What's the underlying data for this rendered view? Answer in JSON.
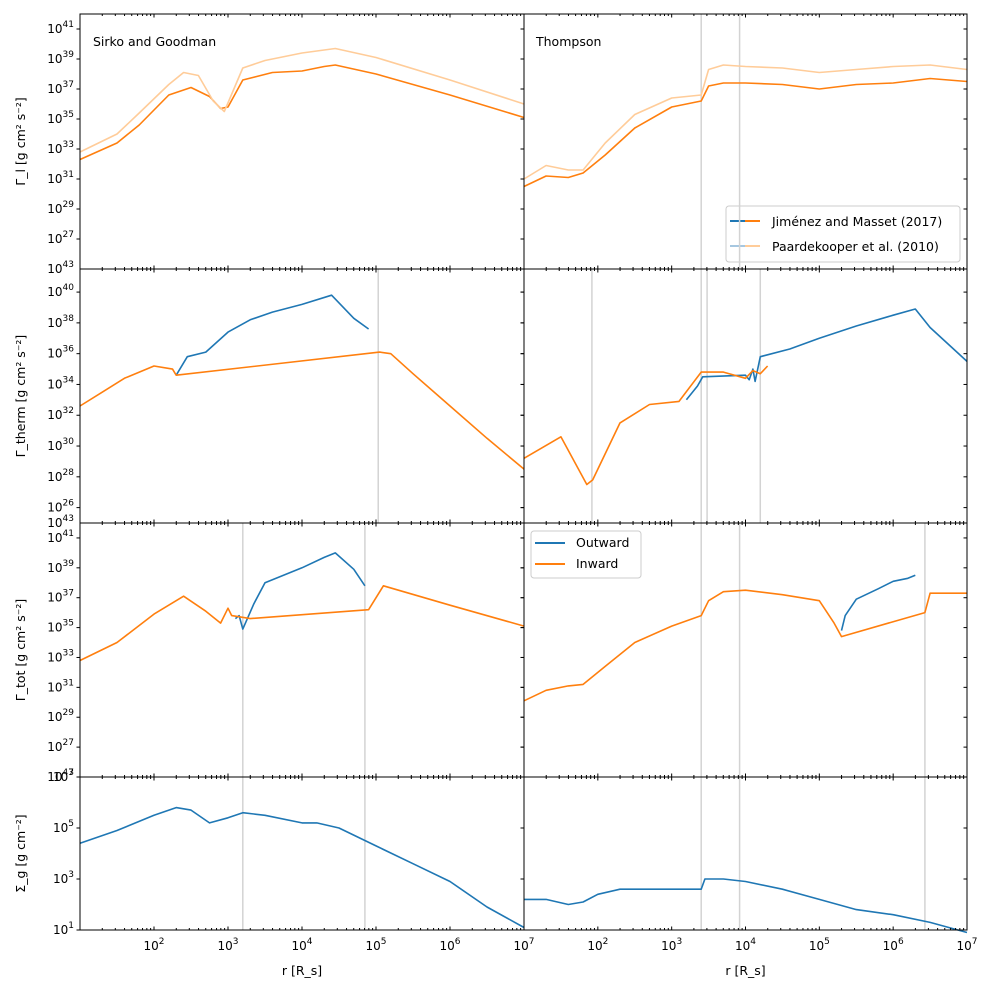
{
  "colors": {
    "outward": "#1f77b4",
    "inward": "#ff7f0e",
    "outward_light": "#a6c7e0",
    "inward_light": "#ffcc99",
    "vline": "#d3d3d3"
  },
  "columns": [
    {
      "title": "Sirko and Goodman"
    },
    {
      "title": "Thompson"
    }
  ],
  "rows": [
    {
      "ylabel": "Γ_l [g cm² s⁻²]",
      "ymin_exp": 25,
      "ymax_exp": 42,
      "ticks": [
        "27",
        "29",
        "31",
        "33",
        "35",
        "37",
        "39",
        "41"
      ]
    },
    {
      "ylabel": "Γ_therm [g cm² s⁻²]",
      "ymin_exp": 25,
      "ymax_exp": 41.5,
      "ticks": [
        "26",
        "28",
        "30",
        "32",
        "34",
        "36",
        "38",
        "40"
      ]
    },
    {
      "ylabel": "Γ_tot [g cm² s⁻²]",
      "ymin_exp": 25,
      "ymax_exp": 42,
      "ticks": [
        "27",
        "29",
        "31",
        "33",
        "35",
        "37",
        "39",
        "41"
      ]
    },
    {
      "ylabel": "Σ_g [g cm⁻²]",
      "ymin_exp": 1,
      "ymax_exp": 7,
      "ticks": [
        "1",
        "3",
        "5",
        "7"
      ]
    }
  ],
  "x_axis": {
    "label": "r [R_s]",
    "xmin_exp": 1,
    "xmax_exp": 7,
    "ticks": [
      "2",
      "3",
      "4",
      "5",
      "6",
      "7"
    ]
  },
  "labels": {
    "tick_base": "10",
    "top_cut_exp": "43",
    "sigma_top_exp": "7",
    "col_title_sg": "Sirko and Goodman",
    "col_title_th": "Thompson",
    "legend1": [
      "Jiménez and Masset (2017)",
      "Paardekooper et al. (2010)"
    ],
    "legend2": [
      "Outward",
      "Inward"
    ]
  },
  "chart_data": [
    {
      "type": "line",
      "title": "Sirko and Goodman",
      "ylabel": "Γ_l [g cm² s⁻²]",
      "xlabel": "",
      "log_x": true,
      "log_y": true,
      "xlim": [
        10,
        10000000
      ],
      "ylim": [
        1e+25,
        1e+42
      ],
      "series": [
        {
          "name": "Jiménez and Masset (2017)",
          "x_log10": [
            1.0,
            1.5,
            1.8,
            2.2,
            2.5,
            2.75,
            2.9,
            3.0,
            3.2,
            3.6,
            4.0,
            4.3,
            4.45,
            5.0,
            6.0,
            7.0
          ],
          "y_log10": [
            32.3,
            33.4,
            34.6,
            36.6,
            37.1,
            36.5,
            35.7,
            35.8,
            37.6,
            38.1,
            38.2,
            38.5,
            38.6,
            38.0,
            36.6,
            35.1
          ]
        },
        {
          "name": "Paardekooper et al. (2010)",
          "x_log10": [
            1.0,
            1.5,
            1.8,
            2.2,
            2.4,
            2.6,
            2.8,
            2.95,
            3.2,
            3.5,
            4.0,
            4.45,
            5.0,
            6.0,
            7.0
          ],
          "y_log10": [
            32.8,
            34.0,
            35.4,
            37.3,
            38.1,
            37.9,
            36.2,
            35.5,
            38.4,
            38.9,
            39.4,
            39.7,
            39.1,
            37.6,
            36.0
          ]
        }
      ]
    },
    {
      "type": "line",
      "title": "Thompson",
      "ylabel": "",
      "xlabel": "",
      "log_x": true,
      "log_y": true,
      "xlim": [
        10,
        10000000
      ],
      "ylim": [
        1e+25,
        1e+42
      ],
      "series": [
        {
          "name": "Jiménez and Masset (2017)",
          "x_log10": [
            1.0,
            1.3,
            1.6,
            1.8,
            2.1,
            2.5,
            3.0,
            3.4,
            3.5,
            3.7,
            4.0,
            4.5,
            5.0,
            5.5,
            6.0,
            6.5,
            7.0
          ],
          "y_log10": [
            30.5,
            31.2,
            31.1,
            31.4,
            32.6,
            34.4,
            35.8,
            36.2,
            37.2,
            37.4,
            37.4,
            37.3,
            37.0,
            37.3,
            37.4,
            37.7,
            37.5
          ]
        },
        {
          "name": "Paardekooper et al. (2010)",
          "x_log10": [
            1.0,
            1.3,
            1.6,
            1.8,
            2.1,
            2.5,
            3.0,
            3.4,
            3.5,
            3.7,
            4.0,
            4.5,
            5.0,
            5.5,
            6.0,
            6.5,
            7.0
          ],
          "y_log10": [
            31.0,
            31.9,
            31.6,
            31.6,
            33.4,
            35.3,
            36.4,
            36.6,
            38.3,
            38.6,
            38.5,
            38.4,
            38.1,
            38.3,
            38.5,
            38.6,
            38.3
          ]
        }
      ]
    },
    {
      "type": "line",
      "title": "",
      "ylabel": "Γ_therm [g cm² s⁻²]",
      "xlabel": "",
      "log_x": true,
      "log_y": true,
      "xlim": [
        10,
        10000000
      ],
      "ylim": [
        1e+25,
        3.2e+41
      ],
      "series": [
        {
          "name": "Outward",
          "x_log10": [
            2.3,
            2.45,
            2.7,
            3.0,
            3.3,
            3.6,
            4.0,
            4.4,
            4.7,
            4.9
          ],
          "y_log10": [
            34.6,
            35.8,
            36.1,
            37.4,
            38.2,
            38.7,
            39.2,
            39.8,
            38.3,
            37.6
          ]
        },
        {
          "name": "Inward",
          "x_log10": [
            1.0,
            1.3,
            1.6,
            2.0,
            2.25,
            2.3,
            5.05,
            5.2,
            5.5,
            6.0,
            6.5,
            7.0
          ],
          "y_log10": [
            32.6,
            33.5,
            34.4,
            35.2,
            35.0,
            34.6,
            36.1,
            36.0,
            34.7,
            32.6,
            30.5,
            28.5
          ]
        }
      ]
    },
    {
      "type": "line",
      "title": "",
      "ylabel": "",
      "xlabel": "",
      "log_x": true,
      "log_y": true,
      "xlim": [
        10,
        10000000
      ],
      "ylim": [
        1e+25,
        3.2e+41
      ],
      "series": [
        {
          "name": "Outward",
          "x_log10": [
            3.2,
            3.35,
            3.42,
            4.0,
            4.05,
            4.1,
            4.13,
            4.2,
            4.6,
            5.0,
            5.5,
            6.0,
            6.3,
            6.5,
            7.0
          ],
          "y_log10": [
            33.0,
            33.9,
            34.5,
            34.6,
            34.3,
            35.0,
            34.2,
            35.8,
            36.3,
            37.0,
            37.8,
            38.5,
            38.9,
            37.7,
            35.5
          ]
        },
        {
          "name": "Inward",
          "x_log10": [
            1.0,
            1.5,
            1.85,
            1.93,
            2.3,
            2.7,
            3.1,
            3.4,
            3.5,
            3.7,
            4.0,
            4.1,
            4.2,
            4.3
          ],
          "y_log10": [
            29.2,
            30.6,
            27.5,
            27.8,
            31.5,
            32.7,
            32.9,
            34.8,
            34.8,
            34.8,
            34.4,
            34.9,
            34.7,
            35.2
          ]
        }
      ]
    },
    {
      "type": "line",
      "title": "",
      "ylabel": "Γ_tot [g cm² s⁻²]",
      "xlabel": "",
      "log_x": true,
      "log_y": true,
      "xlim": [
        10,
        10000000
      ],
      "ylim": [
        1e+25,
        1e+42
      ],
      "series": [
        {
          "name": "Outward",
          "x_log10": [
            3.1,
            3.15,
            3.2,
            3.35,
            3.5,
            4.0,
            4.3,
            4.45,
            4.7,
            4.85
          ],
          "y_log10": [
            35.6,
            35.8,
            34.9,
            36.6,
            38.0,
            39.0,
            39.7,
            40.0,
            38.9,
            37.8
          ]
        },
        {
          "name": "Inward",
          "x_log10": [
            1.0,
            1.5,
            2.0,
            2.4,
            2.7,
            2.9,
            3.0,
            3.05,
            3.3,
            4.9,
            5.1,
            6.0,
            7.0
          ],
          "y_log10": [
            32.8,
            34.0,
            35.9,
            37.1,
            36.1,
            35.3,
            36.3,
            35.8,
            35.6,
            36.2,
            37.8,
            36.5,
            35.1
          ]
        }
      ]
    },
    {
      "type": "line",
      "title": "",
      "ylabel": "",
      "xlabel": "",
      "log_x": true,
      "log_y": true,
      "xlim": [
        10,
        10000000
      ],
      "ylim": [
        1e+25,
        1e+42
      ],
      "series": [
        {
          "name": "Outward",
          "x_log10": [
            5.3,
            5.35,
            5.5,
            5.8,
            6.0,
            6.2,
            6.3
          ],
          "y_log10": [
            34.8,
            35.8,
            36.9,
            37.6,
            38.1,
            38.3,
            38.5
          ]
        },
        {
          "name": "Inward",
          "x_log10": [
            1.0,
            1.3,
            1.6,
            1.8,
            2.1,
            2.5,
            3.0,
            3.4,
            3.5,
            3.7,
            4.0,
            4.5,
            5.0,
            5.2,
            5.3,
            6.43,
            6.5,
            7.0
          ],
          "y_log10": [
            30.1,
            30.8,
            31.1,
            31.2,
            32.4,
            34.0,
            35.1,
            35.8,
            36.8,
            37.4,
            37.5,
            37.2,
            36.8,
            35.3,
            34.4,
            36.0,
            37.3,
            37.3
          ]
        }
      ]
    },
    {
      "type": "line",
      "title": "",
      "ylabel": "Σ_g [g cm⁻²]",
      "xlabel": "r [R_s]",
      "log_x": true,
      "log_y": true,
      "xlim": [
        10,
        10000000
      ],
      "ylim": [
        10,
        10000000
      ],
      "series": [
        {
          "name": "",
          "x_log10": [
            1.0,
            1.5,
            2.0,
            2.3,
            2.5,
            2.75,
            3.0,
            3.2,
            3.5,
            4.0,
            4.2,
            4.5,
            5.0,
            5.5,
            6.0,
            6.5,
            7.0
          ],
          "y_log10": [
            4.4,
            4.9,
            5.5,
            5.8,
            5.7,
            5.2,
            5.4,
            5.6,
            5.5,
            5.2,
            5.2,
            5.0,
            4.3,
            3.6,
            2.9,
            1.9,
            1.1
          ]
        }
      ]
    },
    {
      "type": "line",
      "title": "",
      "ylabel": "",
      "xlabel": "r [R_s]",
      "log_x": true,
      "log_y": true,
      "xlim": [
        10,
        10000000
      ],
      "ylim": [
        10,
        10000000
      ],
      "series": [
        {
          "name": "",
          "x_log10": [
            1.0,
            1.3,
            1.6,
            1.8,
            2.0,
            2.3,
            2.6,
            3.0,
            3.4,
            3.45,
            3.7,
            4.0,
            4.5,
            5.0,
            5.5,
            6.0,
            6.5,
            7.0
          ],
          "y_log10": [
            2.2,
            2.2,
            2.0,
            2.1,
            2.4,
            2.6,
            2.6,
            2.6,
            2.6,
            3.0,
            3.0,
            2.9,
            2.6,
            2.2,
            1.8,
            1.6,
            1.3,
            0.9
          ]
        }
      ]
    }
  ]
}
